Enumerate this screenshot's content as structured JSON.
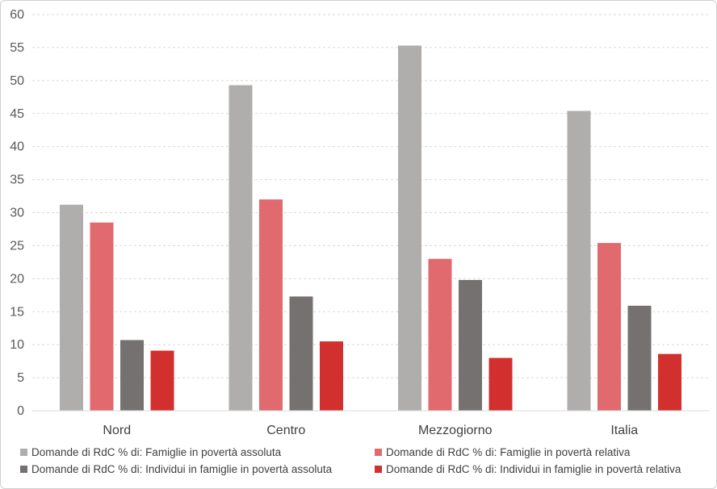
{
  "chart_data": {
    "type": "bar",
    "categories": [
      "Nord",
      "Centro",
      "Mezzogiorno",
      "Italia"
    ],
    "series": [
      {
        "name": "Domande di RdC % di: Famiglie in povertà assoluta",
        "values": [
          31.2,
          49.3,
          55.3,
          45.4
        ],
        "color": "#b0adad"
      },
      {
        "name": "Domande di RdC % di: Famiglie in povertà relativa",
        "values": [
          28.5,
          32.0,
          23.0,
          25.4
        ],
        "color": "#e06a6e"
      },
      {
        "name": "Domande di RdC % di: Individui in famiglie in povertà assoluta",
        "values": [
          10.7,
          17.3,
          19.8,
          15.9
        ],
        "color": "#767171"
      },
      {
        "name": "Domande di RdC % di: Individui in famiglie in povertà relativa",
        "values": [
          9.1,
          10.5,
          8.0,
          8.6
        ],
        "color": "#d1302f"
      }
    ],
    "ylim": [
      0,
      60
    ],
    "yticks": [
      "0",
      "5",
      "10",
      "15",
      "20",
      "25",
      "30",
      "35",
      "40",
      "45",
      "50",
      "55",
      "60"
    ],
    "grid": true,
    "legend": "bottom",
    "title": "",
    "xlabel": "",
    "ylabel": ""
  }
}
